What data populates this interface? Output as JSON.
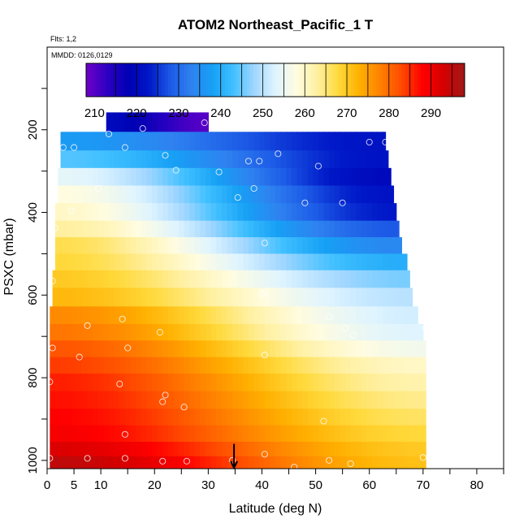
{
  "chart_data": {
    "type": "heatmap",
    "title": "ATOM2 Northeast_Pacific_1 T",
    "flights_note": "Flts: 1,2",
    "dates_note": "MMDD: 0126,0129",
    "xlabel": "Latitude (deg N)",
    "ylabel": "PSXC (mbar)",
    "xlim": [
      0,
      85
    ],
    "ylim": [
      1020,
      0
    ],
    "x_ticks": [
      0,
      5,
      10,
      20,
      30,
      40,
      50,
      60,
      70,
      80
    ],
    "y_ticks": [
      200,
      400,
      600,
      800,
      1000
    ],
    "colorbar": {
      "min": 208,
      "max": 298,
      "ticks": [
        210,
        220,
        230,
        240,
        250,
        260,
        270,
        280,
        290
      ],
      "colors": [
        "#6f00c8",
        "#2e00c2",
        "#0000b4",
        "#0018c8",
        "#1c5ae6",
        "#2f82f0",
        "#16a0f5",
        "#40c0ff",
        "#a0d6ff",
        "#dff4ff",
        "#fffce0",
        "#fff0a0",
        "#ffd93a",
        "#ffb000",
        "#ff8000",
        "#ff4a00",
        "#ff0000",
        "#d40000",
        "#a01818"
      ]
    },
    "x_grid": [
      0,
      1,
      2,
      3,
      4,
      5,
      6,
      7,
      8,
      9,
      10,
      11,
      12,
      13,
      14,
      15,
      16,
      17,
      18,
      19,
      20,
      21,
      22,
      23,
      24,
      25,
      26,
      27,
      28,
      29,
      30,
      31,
      32,
      33,
      34,
      35,
      36,
      37,
      38,
      39,
      40,
      41,
      42,
      43,
      44,
      45,
      46,
      47,
      48,
      49,
      50,
      51,
      52,
      53,
      54,
      55,
      56,
      57,
      58,
      59,
      60,
      61,
      62,
      63,
      64,
      65,
      66,
      67,
      68,
      69,
      70
    ],
    "rows": [
      {
        "p": 180,
        "x0": 11,
        "x1": 30,
        "t_start": 220,
        "t_end": 210
      },
      {
        "p": 230,
        "x0": 2.5,
        "x1": 63,
        "t_start": 237,
        "t_end": 222
      },
      {
        "p": 270,
        "x0": 2.5,
        "x1": 63.5,
        "t_start": 244,
        "t_end": 222
      },
      {
        "p": 315,
        "x0": 2,
        "x1": 64,
        "t_start": 254,
        "t_end": 220
      },
      {
        "p": 355,
        "x0": 2,
        "x1": 64.5,
        "t_start": 258,
        "t_end": 222
      },
      {
        "p": 400,
        "x0": 1.5,
        "x1": 65,
        "t_start": 260,
        "t_end": 223
      },
      {
        "p": 440,
        "x0": 1.5,
        "x1": 65.5,
        "t_start": 263,
        "t_end": 228
      },
      {
        "p": 480,
        "x0": 1.5,
        "x1": 66,
        "t_start": 267,
        "t_end": 234
      },
      {
        "p": 520,
        "x0": 1.5,
        "x1": 67,
        "t_start": 268,
        "t_end": 240
      },
      {
        "p": 560,
        "x0": 1,
        "x1": 67.5,
        "t_start": 270,
        "t_end": 246
      },
      {
        "p": 605,
        "x0": 1,
        "x1": 68,
        "t_start": 272,
        "t_end": 250
      },
      {
        "p": 650,
        "x0": 0.5,
        "x1": 69,
        "t_start": 277,
        "t_end": 252
      },
      {
        "p": 690,
        "x0": 0.5,
        "x1": 70,
        "t_start": 279,
        "t_end": 253
      },
      {
        "p": 730,
        "x0": 0.5,
        "x1": 70.5,
        "t_start": 282,
        "t_end": 256
      },
      {
        "p": 770,
        "x0": 0.5,
        "x1": 70.5,
        "t_start": 284,
        "t_end": 260
      },
      {
        "p": 810,
        "x0": 0.5,
        "x1": 70.5,
        "t_start": 286,
        "t_end": 262
      },
      {
        "p": 855,
        "x0": 0.5,
        "x1": 70.5,
        "t_start": 287,
        "t_end": 264
      },
      {
        "p": 895,
        "x0": 0.5,
        "x1": 70.5,
        "t_start": 288,
        "t_end": 266
      },
      {
        "p": 935,
        "x0": 0.5,
        "x1": 70.5,
        "t_start": 289,
        "t_end": 268
      },
      {
        "p": 975,
        "x0": 0.5,
        "x1": 70.5,
        "t_start": 292,
        "t_end": 270
      },
      {
        "p": 1005,
        "x0": 0.5,
        "x1": 70.5,
        "t_start": 295,
        "t_end": 271
      }
    ],
    "sample_points": [
      [
        11.5,
        210
      ],
      [
        17.8,
        197
      ],
      [
        29.3,
        183
      ],
      [
        3,
        243
      ],
      [
        5,
        243
      ],
      [
        14.5,
        243
      ],
      [
        22,
        262
      ],
      [
        24,
        298
      ],
      [
        32,
        302
      ],
      [
        37.5,
        276
      ],
      [
        39.5,
        276
      ],
      [
        43,
        258
      ],
      [
        50.5,
        288
      ],
      [
        60,
        230
      ],
      [
        63,
        230
      ],
      [
        9.5,
        342
      ],
      [
        35.5,
        364
      ],
      [
        38.5,
        342
      ],
      [
        48,
        377
      ],
      [
        55,
        377
      ],
      [
        4.5,
        396
      ],
      [
        1.5,
        438
      ],
      [
        40.5,
        474
      ],
      [
        1,
        566
      ],
      [
        40.5,
        593
      ],
      [
        40,
        597
      ],
      [
        14,
        658
      ],
      [
        21,
        690
      ],
      [
        7.5,
        674
      ],
      [
        52.5,
        653
      ],
      [
        55.5,
        680
      ],
      [
        57,
        697
      ],
      [
        70,
        647
      ],
      [
        70.5,
        680
      ],
      [
        1,
        728
      ],
      [
        15,
        728
      ],
      [
        6,
        750
      ],
      [
        40.5,
        745
      ],
      [
        0.5,
        810
      ],
      [
        13.5,
        815
      ],
      [
        22,
        842
      ],
      [
        21.5,
        858
      ],
      [
        25.5,
        871
      ],
      [
        51.5,
        905
      ],
      [
        14.5,
        937
      ],
      [
        0.5,
        995
      ],
      [
        7.5,
        995
      ],
      [
        14.5,
        995
      ],
      [
        21.5,
        1002
      ],
      [
        26,
        1002
      ],
      [
        34.5,
        1000
      ],
      [
        40.5,
        985
      ],
      [
        46,
        1016
      ],
      [
        52.5,
        1000
      ],
      [
        56.5,
        1008
      ],
      [
        70,
        993
      ]
    ],
    "arrow_marker": {
      "x": 34.8,
      "p_from": 960,
      "p_to": 1018
    }
  }
}
